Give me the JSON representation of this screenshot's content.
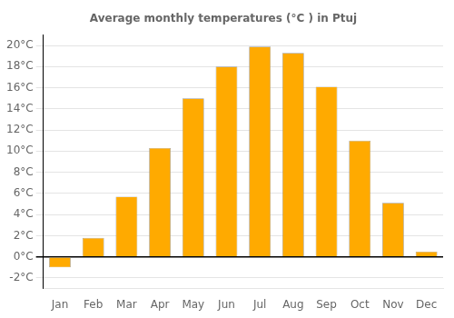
{
  "chart_data": {
    "type": "bar",
    "title": "Average monthly temperatures (°C ) in Ptuj",
    "categories": [
      "Jan",
      "Feb",
      "Mar",
      "Apr",
      "May",
      "Jun",
      "Jul",
      "Aug",
      "Sep",
      "Oct",
      "Nov",
      "Dec"
    ],
    "values": [
      -1.0,
      1.8,
      5.7,
      10.3,
      15.0,
      18.0,
      19.9,
      19.3,
      16.1,
      11.0,
      5.1,
      0.5
    ],
    "color": "#FFAA00",
    "ylim": [
      -3,
      21
    ],
    "yticks": [
      {
        "value": -2,
        "label": "-2°C"
      },
      {
        "value": 0,
        "label": "0°C"
      },
      {
        "value": 2,
        "label": "2°C"
      },
      {
        "value": 4,
        "label": "4°C"
      },
      {
        "value": 6,
        "label": "6°C"
      },
      {
        "value": 8,
        "label": "8°C"
      },
      {
        "value": 10,
        "label": "10°C"
      },
      {
        "value": 12,
        "label": "12°C"
      },
      {
        "value": 14,
        "label": "14°C"
      },
      {
        "value": 16,
        "label": "16°C"
      },
      {
        "value": 18,
        "label": "18°C"
      },
      {
        "value": 20,
        "label": "20°C"
      }
    ],
    "grid": true
  }
}
